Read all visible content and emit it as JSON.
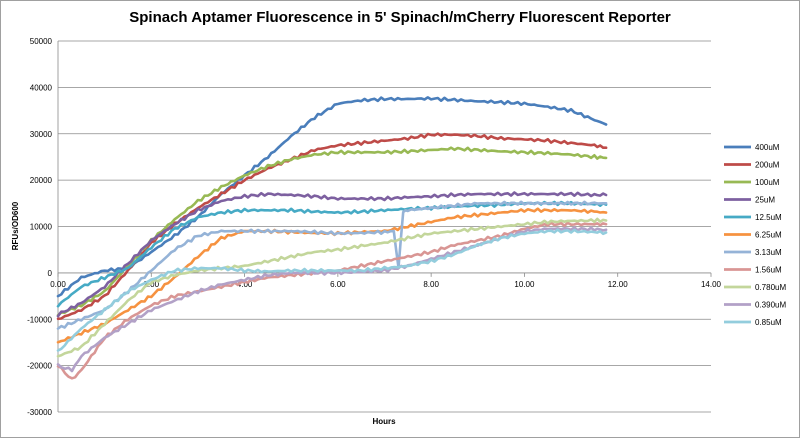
{
  "chart_data": {
    "type": "line",
    "title": "Spinach Aptamer Fluorescence in 5' Spinach/mCherry Fluorescent Reporter",
    "xlabel": "Hours",
    "ylabel": "RFUs/OD600",
    "xlim": [
      0,
      14
    ],
    "ylim": [
      -30000,
      50000
    ],
    "x_ticks": [
      0,
      2,
      4,
      6,
      8,
      10,
      12,
      14
    ],
    "x_tick_labels": [
      "0.00",
      "2.00",
      "4.00",
      "6.00",
      "8.00",
      "10.00",
      "12.00",
      "14.00"
    ],
    "y_ticks": [
      50000,
      40000,
      30000,
      20000,
      10000,
      0,
      -10000,
      -20000,
      -30000
    ],
    "y_tick_labels": [
      "50000",
      "40000",
      "30000",
      "20000",
      "10000",
      "0",
      "-10000",
      "-20000",
      "-30000"
    ],
    "grid": true,
    "legend_position": "right",
    "series": [
      {
        "name": "400uM",
        "color": "#4A7EBB",
        "x": [
          0,
          0.5,
          1,
          1.5,
          2,
          2.5,
          3,
          3.5,
          4,
          4.5,
          5,
          5.5,
          6,
          6.5,
          7,
          7.5,
          8,
          8.5,
          9,
          9.5,
          10,
          10.5,
          11,
          11.5,
          11.75
        ],
        "y": [
          -5000,
          -1000,
          500,
          1000,
          4500,
          8000,
          12000,
          17000,
          21000,
          25000,
          29500,
          33500,
          36500,
          37200,
          37500,
          37500,
          37600,
          37300,
          37000,
          36800,
          36500,
          35800,
          35000,
          33000,
          32000
        ]
      },
      {
        "name": "200uM",
        "color": "#BE4B48",
        "x": [
          0,
          0.5,
          1,
          1.5,
          2,
          2.5,
          3,
          3.5,
          4,
          4.5,
          5,
          5.5,
          6,
          6.5,
          7,
          7.5,
          8,
          8.5,
          9,
          9.5,
          10,
          10.5,
          11,
          11.5,
          11.75
        ],
        "y": [
          -10000,
          -8000,
          -5000,
          500,
          6500,
          10500,
          14000,
          17000,
          20000,
          22500,
          24500,
          26500,
          27500,
          28000,
          28500,
          29000,
          29800,
          29800,
          29500,
          29000,
          28800,
          28500,
          28000,
          27500,
          27000
        ]
      },
      {
        "name": "100uM",
        "color": "#98B954",
        "x": [
          0,
          0.5,
          1,
          1.5,
          2,
          2.5,
          3,
          3.5,
          4,
          4.5,
          5,
          5.5,
          6,
          6.5,
          7,
          7.5,
          8,
          8.5,
          9,
          9.5,
          10,
          10.5,
          11,
          11.5,
          11.75
        ],
        "y": [
          -9000,
          -7000,
          -4000,
          1500,
          7000,
          11500,
          15500,
          18500,
          21000,
          23000,
          24500,
          25500,
          26000,
          26000,
          26000,
          26200,
          26500,
          26800,
          26500,
          26200,
          26000,
          25800,
          25500,
          25000,
          24800
        ]
      },
      {
        "name": "25uM",
        "color": "#7D60A0",
        "x": [
          0,
          0.5,
          1,
          1.5,
          2,
          2.5,
          3,
          3.5,
          4,
          4.5,
          5,
          5.5,
          6,
          6.5,
          7,
          7.5,
          8,
          8.5,
          9,
          9.5,
          10,
          10.5,
          11,
          11.5,
          11.75
        ],
        "y": [
          -9000,
          -6500,
          -3000,
          2000,
          7000,
          10500,
          13500,
          15500,
          16500,
          17000,
          16800,
          16500,
          16000,
          16000,
          16000,
          16300,
          16500,
          16800,
          17000,
          17000,
          17000,
          17000,
          17000,
          16800,
          16800
        ]
      },
      {
        "name": "12.5uM",
        "color": "#46AAC5",
        "x": [
          0,
          0.5,
          1,
          1.5,
          2,
          2.5,
          3,
          3.5,
          4,
          4.5,
          5,
          5.5,
          6,
          6.5,
          7,
          7.5,
          8,
          8.5,
          9,
          9.5,
          10,
          10.5,
          11,
          11.5,
          11.75
        ],
        "y": [
          -7000,
          -3000,
          -1000,
          1000,
          5500,
          9500,
          12000,
          13000,
          13500,
          13500,
          13500,
          13200,
          13000,
          13200,
          13500,
          13800,
          14000,
          14300,
          14500,
          14700,
          15000,
          15000,
          15000,
          14800,
          14700
        ]
      },
      {
        "name": "6.25uM",
        "color": "#F69240",
        "x": [
          0,
          0.5,
          1,
          1.5,
          2,
          2.5,
          3,
          3.5,
          4,
          4.5,
          5,
          5.5,
          6,
          6.5,
          7,
          7.5,
          8,
          8.5,
          9,
          9.5,
          10,
          10.5,
          11,
          11.5,
          11.75
        ],
        "y": [
          -15000,
          -13000,
          -11000,
          -8000,
          -5000,
          -1000,
          3500,
          7500,
          9000,
          9000,
          8800,
          8600,
          8500,
          8800,
          9000,
          10000,
          11000,
          12000,
          12500,
          13000,
          13500,
          13500,
          13500,
          13200,
          13000
        ]
      },
      {
        "name": "3.13uM",
        "color": "#95B3D7",
        "x": [
          0,
          0.5,
          1,
          1.5,
          2,
          2.5,
          3,
          3.5,
          4,
          4.5,
          5,
          5.5,
          6,
          6.5,
          7,
          7.2,
          7.3,
          7.4,
          7.5,
          8,
          8.5,
          9,
          9.5,
          10,
          10.5,
          11,
          11.5,
          11.75
        ],
        "y": [
          -12000,
          -10000,
          -8000,
          -4000,
          500,
          5000,
          8000,
          9000,
          9000,
          9000,
          9000,
          8800,
          8500,
          8600,
          8800,
          9000,
          1000,
          13000,
          13500,
          14000,
          14500,
          15000,
          15000,
          15000,
          15000,
          15000,
          15000,
          15000
        ]
      },
      {
        "name": "1.56uM",
        "color": "#D99694",
        "x": [
          0,
          0.3,
          0.5,
          1,
          1.5,
          2,
          2.5,
          3,
          3.5,
          4,
          4.5,
          5,
          5.5,
          6,
          6.5,
          7,
          7.5,
          8,
          8.5,
          9,
          9.5,
          10,
          10.5,
          11,
          11.5,
          11.75
        ],
        "y": [
          -20000,
          -23000,
          -21000,
          -14000,
          -10000,
          -7000,
          -5000,
          -4000,
          -3000,
          -2000,
          -1000,
          -500,
          0,
          500,
          1500,
          2500,
          3500,
          4500,
          6000,
          7000,
          8000,
          9500,
          10500,
          10500,
          10500,
          10500
        ]
      },
      {
        "name": "0.780uM",
        "color": "#C3D69B",
        "x": [
          0,
          0.5,
          1,
          1.5,
          2,
          2.5,
          3,
          3.5,
          4,
          4.5,
          5,
          5.5,
          6,
          6.5,
          7,
          7.5,
          8,
          8.5,
          9,
          9.5,
          10,
          10.5,
          11,
          11.5,
          11.75
        ],
        "y": [
          -18000,
          -16000,
          -11000,
          -6000,
          -2000,
          -500,
          500,
          1000,
          1500,
          2500,
          3500,
          4500,
          5000,
          5800,
          6500,
          7500,
          8500,
          9000,
          9500,
          10000,
          10500,
          11000,
          11200,
          11300,
          11300
        ]
      },
      {
        "name": "0.390uM",
        "color": "#B2A1C7",
        "x": [
          0,
          0.3,
          0.5,
          1,
          1.5,
          2,
          2.5,
          3,
          3.5,
          4,
          4.5,
          5,
          5.5,
          6,
          6.5,
          7,
          7.5,
          8,
          8.5,
          9,
          9.5,
          10,
          10.5,
          11,
          11.5,
          11.75
        ],
        "y": [
          -20000,
          -21000,
          -18000,
          -14000,
          -11000,
          -8000,
          -6000,
          -4000,
          -2500,
          -1500,
          -500,
          0,
          0,
          0,
          200,
          500,
          1500,
          3000,
          4500,
          6000,
          7500,
          9000,
          9500,
          9500,
          9400,
          9300
        ]
      },
      {
        "name": "0.85uM",
        "color": "#93CDDD",
        "x": [
          0,
          0.5,
          1,
          1.5,
          2,
          2.5,
          3,
          3.5,
          4,
          4.5,
          5,
          5.5,
          6,
          6.5,
          7,
          7.5,
          8,
          8.5,
          9,
          9.5,
          10,
          10.5,
          11,
          11.5,
          11.75
        ],
        "y": [
          -17000,
          -12000,
          -8000,
          -4000,
          -1500,
          500,
          1000,
          1000,
          500,
          300,
          500,
          500,
          500,
          500,
          1000,
          1500,
          2500,
          4000,
          6000,
          7500,
          8500,
          9000,
          9000,
          8800,
          8700
        ]
      }
    ]
  }
}
